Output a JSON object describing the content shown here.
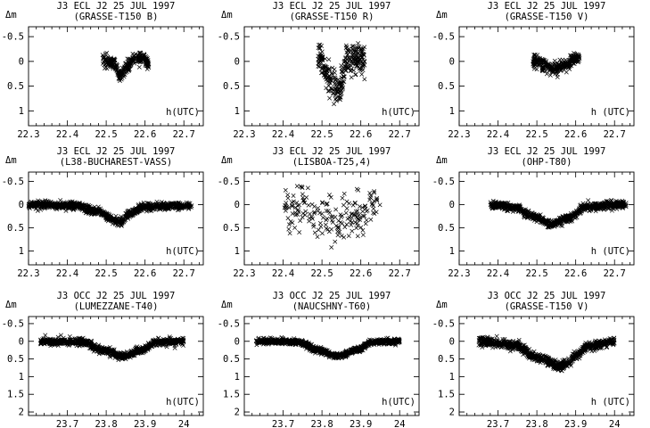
{
  "chart_data": [
    {
      "type": "scatter",
      "title": "J3 ECL J2 25 JUL 1997",
      "subtitle": "(GRASSE-T150 B)",
      "ylabel": "Δm",
      "xlabel": "h(UTC)",
      "xlim": [
        22.3,
        22.75
      ],
      "ylim": [
        -0.7,
        1.3
      ],
      "y_inverted": true,
      "xticks": [
        "22.3",
        "22.4",
        "22.5",
        "22.6",
        "22.7"
      ],
      "yticks": [
        "-0.5",
        "0",
        "0.5",
        "1"
      ],
      "x_range_data": [
        22.49,
        22.61
      ],
      "features": [
        {
          "x": 22.5,
          "y": -0.02
        },
        {
          "x": 22.52,
          "y": 0.05
        },
        {
          "x": 22.535,
          "y": 0.27
        },
        {
          "x": 22.55,
          "y": 0.12
        },
        {
          "x": 22.57,
          "y": -0.03
        },
        {
          "x": 22.6,
          "y": -0.05
        },
        {
          "x": 22.61,
          "y": 0.02
        }
      ],
      "scatter_noise": 0.06
    },
    {
      "type": "scatter",
      "title": "J3 ECL J2 25 JUL 1997",
      "subtitle": "(GRASSE-T150 R)",
      "ylabel": "Δm",
      "xlabel": "h(UTC)",
      "xlim": [
        22.3,
        22.75
      ],
      "ylim": [
        -0.7,
        1.3
      ],
      "y_inverted": true,
      "xticks": [
        "22.3",
        "22.4",
        "22.5",
        "22.6",
        "22.7"
      ],
      "yticks": [
        "-0.5",
        "0",
        "0.5",
        "1"
      ],
      "x_range_data": [
        22.49,
        22.61
      ],
      "features": [
        {
          "x": 22.495,
          "y": -0.15
        },
        {
          "x": 22.51,
          "y": 0.25
        },
        {
          "x": 22.53,
          "y": 0.5
        },
        {
          "x": 22.545,
          "y": 0.6
        },
        {
          "x": 22.555,
          "y": 0.3
        },
        {
          "x": 22.565,
          "y": -0.1
        },
        {
          "x": 22.61,
          "y": -0.05
        }
      ],
      "scatter_noise": 0.14
    },
    {
      "type": "scatter",
      "title": "J3 ECL J2 25 JUL 1997",
      "subtitle": "(GRASSE-T150 V)",
      "ylabel": "Δm",
      "xlabel": "h (UTC)",
      "xlim": [
        22.3,
        22.75
      ],
      "ylim": [
        -0.7,
        1.3
      ],
      "y_inverted": true,
      "xticks": [
        "22.3",
        "22.4",
        "22.5",
        "22.6",
        "22.7"
      ],
      "yticks": [
        "-0.5",
        "0",
        "0.5",
        "1"
      ],
      "x_range_data": [
        22.49,
        22.61
      ],
      "features": [
        {
          "x": 22.5,
          "y": 0.0
        },
        {
          "x": 22.52,
          "y": 0.08
        },
        {
          "x": 22.54,
          "y": 0.15
        },
        {
          "x": 22.56,
          "y": 0.12
        },
        {
          "x": 22.58,
          "y": 0.05
        },
        {
          "x": 22.6,
          "y": -0.05
        }
      ],
      "scatter_noise": 0.06
    },
    {
      "type": "scatter",
      "title": "J3 ECL J2 25 JUL 1997",
      "subtitle": "(L38-BUCHAREST-VASS)",
      "ylabel": "Δm",
      "xlabel": "h(UTC)",
      "xlim": [
        22.3,
        22.75
      ],
      "ylim": [
        -0.7,
        1.3
      ],
      "y_inverted": true,
      "xticks": [
        "22.3",
        "22.4",
        "22.5",
        "22.6",
        "22.7"
      ],
      "yticks": [
        "-0.5",
        "0",
        "0.5",
        "1"
      ],
      "x_range_data": [
        22.3,
        22.72
      ],
      "features": [
        {
          "x": 22.3,
          "y": 0.0
        },
        {
          "x": 22.42,
          "y": 0.02
        },
        {
          "x": 22.48,
          "y": 0.15
        },
        {
          "x": 22.52,
          "y": 0.35
        },
        {
          "x": 22.535,
          "y": 0.38
        },
        {
          "x": 22.56,
          "y": 0.2
        },
        {
          "x": 22.6,
          "y": 0.05
        },
        {
          "x": 22.72,
          "y": 0.02
        }
      ],
      "scatter_noise": 0.04
    },
    {
      "type": "scatter",
      "title": "J3 ECL J2 25 JUL 1997",
      "subtitle": "(LISBOA-T25,4)",
      "ylabel": "Δm",
      "xlabel": "",
      "xlim": [
        22.3,
        22.75
      ],
      "ylim": [
        -0.7,
        1.3
      ],
      "y_inverted": true,
      "xticks": [
        "22.3",
        "22.4",
        "22.5",
        "22.6",
        "22.7"
      ],
      "yticks": [
        "-0.5",
        "0",
        "0.5",
        "1"
      ],
      "x_range_data": [
        22.4,
        22.65
      ],
      "features": [
        {
          "x": 22.4,
          "y": 0.05
        },
        {
          "x": 22.45,
          "y": 0.1
        },
        {
          "x": 22.5,
          "y": 0.25
        },
        {
          "x": 22.54,
          "y": 0.35
        },
        {
          "x": 22.58,
          "y": 0.2
        },
        {
          "x": 22.65,
          "y": 0.0
        }
      ],
      "scatter_noise": 0.22
    },
    {
      "type": "scatter",
      "title": "J3 ECL J2 25 JUL 1997",
      "subtitle": "(OHP-T80)",
      "ylabel": "Δm",
      "xlabel": "h (UTC)",
      "xlim": [
        22.3,
        22.75
      ],
      "ylim": [
        -0.7,
        1.3
      ],
      "y_inverted": true,
      "xticks": [
        "22.3",
        "22.4",
        "22.5",
        "22.6",
        "22.7"
      ],
      "yticks": [
        "-0.5",
        "0",
        "0.5",
        "1"
      ],
      "x_range_data": [
        22.38,
        22.73
      ],
      "features": [
        {
          "x": 22.38,
          "y": 0.0
        },
        {
          "x": 22.44,
          "y": 0.05
        },
        {
          "x": 22.49,
          "y": 0.25
        },
        {
          "x": 22.535,
          "y": 0.42
        },
        {
          "x": 22.58,
          "y": 0.3
        },
        {
          "x": 22.63,
          "y": 0.05
        },
        {
          "x": 22.73,
          "y": 0.0
        }
      ],
      "scatter_noise": 0.04
    },
    {
      "type": "scatter",
      "title": "J3 OCC J2 25 JUL 1997",
      "subtitle": "(LUMEZZANE-T40)",
      "ylabel": "Δm",
      "xlabel": "h(UTC)",
      "xlim": [
        23.6,
        24.05
      ],
      "ylim": [
        -0.7,
        2.1
      ],
      "y_inverted": true,
      "xticks": [
        "23.7",
        "23.8",
        "23.9",
        "24"
      ],
      "yticks": [
        "-0.5",
        "0",
        "0.5",
        "1",
        "1.5",
        "2"
      ],
      "x_range_data": [
        23.63,
        24.0
      ],
      "features": [
        {
          "x": 23.63,
          "y": 0.0
        },
        {
          "x": 23.74,
          "y": 0.02
        },
        {
          "x": 23.79,
          "y": 0.25
        },
        {
          "x": 23.84,
          "y": 0.42
        },
        {
          "x": 23.89,
          "y": 0.25
        },
        {
          "x": 23.93,
          "y": 0.02
        },
        {
          "x": 24.0,
          "y": 0.0
        }
      ],
      "scatter_noise": 0.05
    },
    {
      "type": "scatter",
      "title": "J3 OCC J2 25 JUL 1997",
      "subtitle": "(NAUCSHNY-T60)",
      "ylabel": "Δm",
      "xlabel": "h(UTC)",
      "xlim": [
        23.6,
        24.05
      ],
      "ylim": [
        -0.7,
        2.1
      ],
      "y_inverted": true,
      "xticks": [
        "23.7",
        "23.8",
        "23.9",
        "24"
      ],
      "yticks": [
        "-0.5",
        "0",
        "0.5",
        "1",
        "1.5",
        "2"
      ],
      "x_range_data": [
        23.63,
        24.0
      ],
      "features": [
        {
          "x": 23.63,
          "y": 0.0
        },
        {
          "x": 23.74,
          "y": 0.02
        },
        {
          "x": 23.79,
          "y": 0.25
        },
        {
          "x": 23.84,
          "y": 0.42
        },
        {
          "x": 23.89,
          "y": 0.25
        },
        {
          "x": 23.93,
          "y": 0.02
        },
        {
          "x": 24.0,
          "y": 0.0
        }
      ],
      "scatter_noise": 0.04
    },
    {
      "type": "scatter",
      "title": "J3 OCC J2 25 JUL 1997",
      "subtitle": "(GRASSE-T150 V)",
      "ylabel": "Δm",
      "xlabel": "h (UTC)",
      "xlim": [
        23.6,
        24.05
      ],
      "ylim": [
        -0.7,
        2.1
      ],
      "y_inverted": true,
      "xticks": [
        "23.7",
        "23.8",
        "23.9",
        "24"
      ],
      "yticks": [
        "-0.5",
        "0",
        "0.5",
        "1",
        "1.5",
        "2"
      ],
      "x_range_data": [
        23.65,
        24.0
      ],
      "features": [
        {
          "x": 23.65,
          "y": 0.0
        },
        {
          "x": 23.74,
          "y": 0.1
        },
        {
          "x": 23.8,
          "y": 0.45
        },
        {
          "x": 23.86,
          "y": 0.7
        },
        {
          "x": 23.88,
          "y": 0.6
        },
        {
          "x": 23.9,
          "y": 0.4
        },
        {
          "x": 23.93,
          "y": 0.15
        },
        {
          "x": 24.0,
          "y": 0.0
        }
      ],
      "scatter_noise": 0.06
    }
  ]
}
